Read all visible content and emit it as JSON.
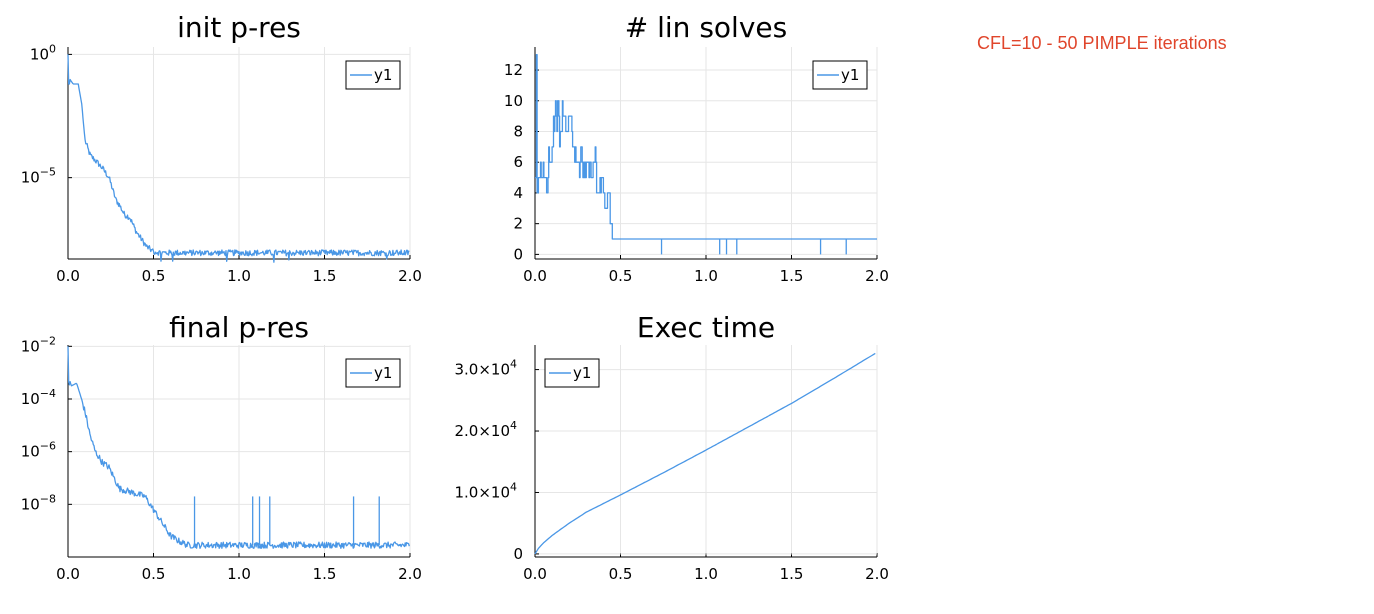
{
  "annotation": "CFL=10 - 50 PIMPLE iterations",
  "colors": {
    "series": "#4a97e6",
    "annotation": "#e0452b",
    "grid": "#e6e6e6"
  },
  "chart_data": [
    {
      "type": "line",
      "title": "init p-res",
      "yscale": "log",
      "xlim": [
        0.0,
        2.0
      ],
      "ylim_log10": [
        -8.3,
        0.3
      ],
      "xticks": [
        "0.0",
        "0.5",
        "1.0",
        "1.5",
        "2.0"
      ],
      "yticks": [
        {
          "exp": "0"
        },
        {
          "exp": "−5"
        }
      ],
      "legend": {
        "entries": [
          "y1"
        ],
        "placement": "top-right"
      },
      "grid": true,
      "series": [
        {
          "name": "y1",
          "x": [
            0.0,
            0.005,
            0.01,
            0.03,
            0.06,
            0.08,
            0.1,
            0.13,
            0.16,
            0.2,
            0.24,
            0.28,
            0.3,
            0.33,
            0.36,
            0.4,
            0.43,
            0.46,
            0.5,
            0.55,
            1.0,
            1.5,
            2.0
          ],
          "y_log10": [
            0.0,
            -1.5,
            -1.0,
            -1.2,
            -1.2,
            -2.0,
            -3.5,
            -4.1,
            -4.3,
            -4.6,
            -5.0,
            -5.9,
            -6.1,
            -6.5,
            -6.6,
            -7.2,
            -7.5,
            -7.8,
            -8.0,
            -8.05,
            -8.05,
            -8.05,
            -8.05
          ],
          "noise": 0.12
        }
      ]
    },
    {
      "type": "line",
      "title": "# lin solves",
      "xlim": [
        0.0,
        2.0
      ],
      "ylim": [
        -0.3,
        13.5
      ],
      "xticks": [
        "0.0",
        "0.5",
        "1.0",
        "1.5",
        "2.0"
      ],
      "yticks": [
        "0",
        "2",
        "4",
        "6",
        "8",
        "10",
        "12"
      ],
      "legend": {
        "entries": [
          "y1"
        ],
        "placement": "top-right"
      },
      "grid": true,
      "series": [
        {
          "name": "y1",
          "x": [
            0.0,
            0.005,
            0.01,
            0.02,
            0.04,
            0.06,
            0.08,
            0.1,
            0.12,
            0.14,
            0.16,
            0.18,
            0.2,
            0.22,
            0.24,
            0.26,
            0.28,
            0.3,
            0.32,
            0.34,
            0.36,
            0.38,
            0.4,
            0.42,
            0.44,
            0.45,
            0.6,
            0.8,
            1.0,
            1.2,
            1.4,
            1.6,
            1.8,
            2.0
          ],
          "y": [
            5,
            13,
            4,
            5,
            5,
            5,
            6,
            8,
            9,
            8,
            9,
            8,
            8,
            7,
            6,
            6,
            5,
            6,
            5,
            6,
            4,
            5,
            3,
            4,
            2,
            1,
            1,
            1,
            1,
            1,
            1,
            1,
            1,
            1
          ],
          "dips_x": [
            0.74,
            1.08,
            1.12,
            1.18,
            1.67,
            1.82
          ]
        }
      ]
    },
    {
      "type": "line",
      "title": "final p-res",
      "yscale": "log",
      "xlim": [
        0.0,
        2.0
      ],
      "ylim_log10": [
        -10.0,
        -1.95
      ],
      "xticks": [
        "0.0",
        "0.5",
        "1.0",
        "1.5",
        "2.0"
      ],
      "yticks": [
        {
          "exp": "−2"
        },
        {
          "exp": "−4"
        },
        {
          "exp": "−6"
        },
        {
          "exp": "−8"
        }
      ],
      "legend": {
        "entries": [
          "y1"
        ],
        "placement": "top-right"
      },
      "grid": true,
      "series": [
        {
          "name": "y1",
          "x": [
            0.0,
            0.005,
            0.01,
            0.02,
            0.05,
            0.07,
            0.1,
            0.13,
            0.16,
            0.2,
            0.24,
            0.27,
            0.3,
            0.35,
            0.4,
            0.45,
            0.5,
            0.55,
            0.6,
            0.65,
            0.7,
            1.0,
            1.5,
            2.0
          ],
          "y_log10": [
            -2.0,
            -3.7,
            -3.3,
            -3.5,
            -3.4,
            -3.8,
            -4.5,
            -5.4,
            -6.0,
            -6.4,
            -6.6,
            -7.0,
            -7.4,
            -7.5,
            -7.6,
            -7.7,
            -8.2,
            -8.7,
            -9.2,
            -9.4,
            -9.55,
            -9.55,
            -9.55,
            -9.55
          ],
          "noise": 0.12,
          "spikes_x": [
            0.74,
            1.08,
            1.12,
            1.18,
            1.67,
            1.82
          ],
          "spike_top_log10": -7.7
        }
      ]
    },
    {
      "type": "line",
      "title": "Exec time",
      "xlim": [
        0.0,
        2.0
      ],
      "ylim": [
        -500,
        34000
      ],
      "xticks": [
        "0.0",
        "0.5",
        "1.0",
        "1.5",
        "2.0"
      ],
      "yticks": [
        {
          "value": 0,
          "text": "0"
        },
        {
          "value": 10000,
          "mant": "1.0",
          "exp": "4"
        },
        {
          "value": 20000,
          "mant": "2.0",
          "exp": "4"
        },
        {
          "value": 30000,
          "mant": "3.0",
          "exp": "4"
        }
      ],
      "legend": {
        "entries": [
          "y1"
        ],
        "placement": "top-left"
      },
      "grid": true,
      "series": [
        {
          "name": "y1",
          "x": [
            0.0,
            0.02,
            0.05,
            0.1,
            0.2,
            0.3,
            0.4,
            0.5,
            0.75,
            1.0,
            1.25,
            1.5,
            1.75,
            2.0
          ],
          "y": [
            0,
            900,
            1800,
            3000,
            5000,
            6800,
            8200,
            9600,
            13200,
            16900,
            20700,
            24500,
            28600,
            32800
          ]
        }
      ]
    }
  ]
}
